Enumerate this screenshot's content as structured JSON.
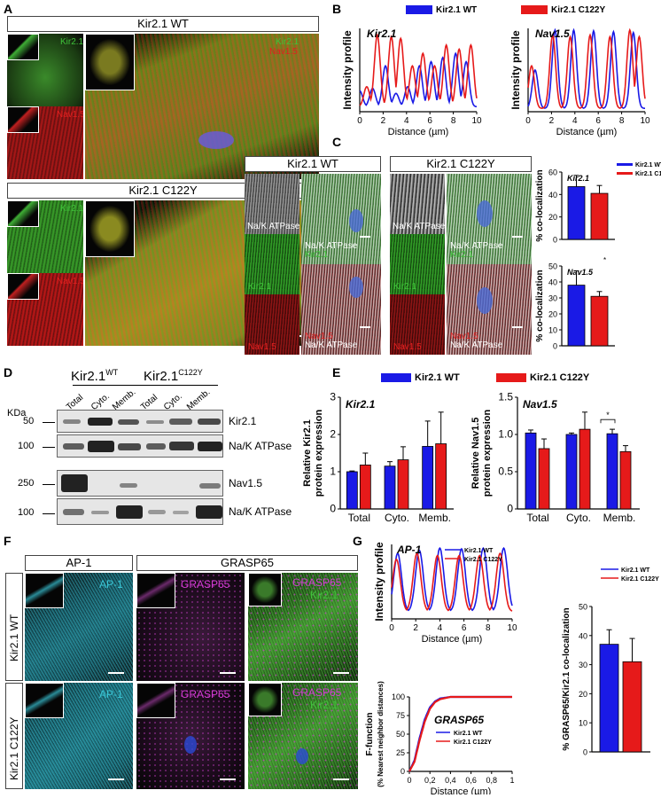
{
  "panels": {
    "A": "A",
    "B": "B",
    "C": "C",
    "D": "D",
    "E": "E",
    "F": "F",
    "G": "G"
  },
  "colors": {
    "wt": "#1a1ae6",
    "mut": "#e61a1a",
    "green": "#3fc23a",
    "red": "#e02020",
    "cyan": "#39c6d6",
    "magenta": "#d63bd6"
  },
  "panelA": {
    "wt_title": "Kir2.1 WT",
    "mut_title": "Kir2.1 C122Y",
    "kir": "Kir2.1",
    "nav": "Nav1.5"
  },
  "panelB": {
    "legend_wt": "Kir2.1 WT",
    "legend_mut": "Kir2.1 C122Y",
    "ylabel": "Intensity profile",
    "xlabel": "Distance (µm)",
    "xticks": [
      "0",
      "2",
      "4",
      "6",
      "8",
      "10"
    ],
    "titles": [
      "Kir2.1",
      "Nav1.5"
    ]
  },
  "panelC": {
    "wt_title": "Kir2.1 WT",
    "mut_title": "Kir2.1 C122Y",
    "naK": "Na/K ATPase",
    "kir": "Kir2.1",
    "nav": "Nav1.5",
    "legend_wt": "Kir2.1 WT",
    "legend_mut": "Kir2.1 C122Y",
    "ylabel": "% co-localization"
  },
  "panelD": {
    "kda": "KDa",
    "group_wt": "Kir2.1",
    "group_wt_sup": "WT",
    "group_mut": "Kir2.1",
    "group_mut_sup": "C122Y",
    "lanes": [
      "Total",
      "Cyto.",
      "Memb.",
      "Total",
      "Cyto.",
      "Memb."
    ],
    "markers": [
      "50",
      "100",
      "250",
      "100"
    ],
    "bands": [
      "Kir2.1",
      "Na/K ATPase",
      "Nav1.5",
      "Na/K ATPase"
    ]
  },
  "panelE": {
    "legend_wt": "Kir2.1 WT",
    "legend_mut": "Kir2.1 C122Y",
    "categories": [
      "Total",
      "Cyto.",
      "Memb."
    ],
    "ylabel_kir": "Relative Kir2.1 protein expression",
    "ylabel_nav": "Relative Nav1.5 protein expression",
    "sig": "*"
  },
  "panelF": {
    "ap1": "AP-1",
    "grasp": "GRASP65",
    "kir": "Kir2.1",
    "row_wt": "Kir2.1 WT",
    "row_mut": "Kir2.1 C122Y"
  },
  "panelG": {
    "ap_title": "AP-1",
    "ylabel": "Intensity profile",
    "xlabel": "Distance (µm)",
    "fy1": "F-function",
    "fy2": "(% Nearest neighbor distances)",
    "grasp_title": "GRASP65",
    "bar_ylabel": "% GRASP65/Kir2.1 co-localization",
    "legend_wt": "Kir2.1 WT",
    "legend_mut": "Kir2.1 C122Y"
  },
  "chart_data": [
    {
      "type": "line",
      "title": "Kir2.1",
      "xlabel": "Distance (µm)",
      "ylabel": "Intensity profile",
      "xlim": [
        0,
        10
      ],
      "series": [
        {
          "name": "Kir2.1 WT",
          "x": [
            0,
            1.1,
            2.2,
            3.1,
            4.1,
            5.1,
            6.1,
            7.1,
            8.2,
            9.1
          ],
          "values": [
            25,
            28,
            55,
            22,
            30,
            55,
            60,
            65,
            70,
            60
          ]
        },
        {
          "name": "Kir2.1 C122Y",
          "x": [
            0.6,
            1.5,
            2.7,
            3.5,
            4.5,
            5.4,
            6.4,
            7.4,
            8.5,
            9.5
          ],
          "values": [
            30,
            92,
            90,
            88,
            55,
            70,
            55,
            80,
            75,
            80
          ]
        }
      ]
    },
    {
      "type": "line",
      "title": "Nav1.5",
      "xlabel": "Distance (µm)",
      "ylabel": "Intensity profile",
      "xlim": [
        0,
        10
      ],
      "series": [
        {
          "name": "Kir2.1 WT",
          "x": [
            0.6,
            2.3,
            3.9,
            5.6,
            7.3,
            9.0
          ],
          "values": [
            50,
            98,
            98,
            97,
            96,
            95
          ]
        },
        {
          "name": "Kir2.1 C122Y",
          "x": [
            0.3,
            2.1,
            3.6,
            5.3,
            7.0,
            8.7,
            9.5
          ],
          "values": [
            55,
            92,
            90,
            92,
            90,
            98,
            90
          ]
        }
      ]
    },
    {
      "type": "bar",
      "title": "Kir2.1",
      "categories": [
        "Kir2.1 WT",
        "Kir2.1 C122Y"
      ],
      "values": [
        47,
        41
      ],
      "errors": [
        10,
        7
      ],
      "ylabel": "% co-localization",
      "ylim": [
        0,
        60
      ],
      "yticks": [
        0,
        20,
        40,
        60
      ]
    },
    {
      "type": "bar",
      "title": "Nav1.5",
      "categories": [
        "Kir2.1 WT",
        "Kir2.1 C122Y"
      ],
      "values": [
        38,
        31
      ],
      "errors": [
        9,
        3
      ],
      "ylabel": "% co-localization",
      "ylim": [
        0,
        50
      ],
      "yticks": [
        0,
        10,
        20,
        30,
        40,
        50
      ]
    },
    {
      "type": "bar",
      "title": "Kir2.1",
      "categories": [
        "Total",
        "Cyto.",
        "Memb."
      ],
      "series": [
        {
          "name": "Kir2.1 WT",
          "values": [
            1.0,
            1.15,
            1.68
          ],
          "errors": [
            0.02,
            0.12,
            0.68
          ]
        },
        {
          "name": "Kir2.1 C122Y",
          "values": [
            1.18,
            1.32,
            1.75
          ],
          "errors": [
            0.32,
            0.35,
            0.85
          ]
        }
      ],
      "ylabel": "Relative Kir2.1 protein expression",
      "ylim": [
        0,
        3
      ],
      "yticks": [
        0,
        1,
        2,
        3
      ]
    },
    {
      "type": "bar",
      "title": "Nav1.5",
      "categories": [
        "Total",
        "Cyto.",
        "Memb."
      ],
      "series": [
        {
          "name": "Kir2.1 WT",
          "values": [
            1.02,
            1.0,
            1.01
          ],
          "errors": [
            0.04,
            0.02,
            0.06
          ]
        },
        {
          "name": "Kir2.1 C122Y",
          "values": [
            0.81,
            1.07,
            0.77
          ],
          "errors": [
            0.13,
            0.23,
            0.08
          ]
        }
      ],
      "ylabel": "Relative Nav1.5 protein expression",
      "ylim": [
        0,
        1.5
      ],
      "yticks": [
        0,
        0.5,
        1.0,
        1.5
      ]
    },
    {
      "type": "line",
      "title": "AP-1",
      "xlabel": "Distance (µm)",
      "ylabel": "Intensity profile",
      "xlim": [
        0,
        10
      ],
      "series": [
        {
          "name": "Kir2.1 WT",
          "x": [
            0.5,
            2.3,
            4.0,
            5.8,
            7.6,
            9.3
          ],
          "values": [
            88,
            92,
            95,
            94,
            95,
            95
          ]
        },
        {
          "name": "Kir2.1 C122Y",
          "x": [
            0.4,
            2.1,
            3.8,
            5.6,
            7.3,
            9.0
          ],
          "values": [
            80,
            88,
            85,
            85,
            85,
            88
          ]
        }
      ]
    },
    {
      "type": "line",
      "title": "GRASP65",
      "xlabel": "Distance (µm)",
      "ylabel": "F-function (% Nearest neighbor distances)",
      "xlim": [
        0,
        1
      ],
      "ylim": [
        0,
        100
      ],
      "xticks": [
        "0",
        "0,2",
        "0,4",
        "0,6",
        "0,8",
        "1"
      ],
      "series": [
        {
          "name": "Kir2.1 WT",
          "x": [
            0,
            0.05,
            0.1,
            0.15,
            0.2,
            0.25,
            0.3,
            0.4,
            0.5,
            1
          ],
          "values": [
            0,
            15,
            45,
            70,
            86,
            94,
            98,
            100,
            100,
            100
          ]
        },
        {
          "name": "Kir2.1 C122Y",
          "x": [
            0,
            0.05,
            0.1,
            0.15,
            0.2,
            0.25,
            0.3,
            0.4,
            0.5,
            1
          ],
          "values": [
            0,
            13,
            42,
            67,
            84,
            93,
            97,
            100,
            100,
            100
          ]
        }
      ]
    },
    {
      "type": "bar",
      "categories": [
        "Kir2.1 WT",
        "Kir2.1 C122Y"
      ],
      "values": [
        37,
        31
      ],
      "errors": [
        5,
        8
      ],
      "ylabel": "% GRASP65/Kir2.1 co-localization",
      "ylim": [
        0,
        50
      ],
      "yticks": [
        0,
        10,
        20,
        30,
        40,
        50
      ]
    }
  ]
}
